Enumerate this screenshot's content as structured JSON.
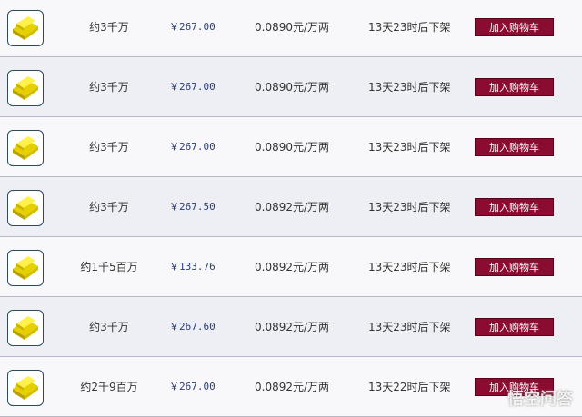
{
  "rows": [
    {
      "amount": "约3千万",
      "price": "￥267.00",
      "rate": "0.0890元/万两",
      "time": "13天23时后下架",
      "button": "加入购物车"
    },
    {
      "amount": "约3千万",
      "price": "￥267.00",
      "rate": "0.0890元/万两",
      "time": "13天23时后下架",
      "button": "加入购物车"
    },
    {
      "amount": "约3千万",
      "price": "￥267.00",
      "rate": "0.0890元/万两",
      "time": "13天23时后下架",
      "button": "加入购物车"
    },
    {
      "amount": "约3千万",
      "price": "￥267.50",
      "rate": "0.0892元/万两",
      "time": "13天23时后下架",
      "button": "加入购物车"
    },
    {
      "amount": "约1千5百万",
      "price": "￥133.76",
      "rate": "0.0892元/万两",
      "time": "13天23时后下架",
      "button": "加入购物车"
    },
    {
      "amount": "约3千万",
      "price": "￥267.60",
      "rate": "0.0892元/万两",
      "time": "13天23时后下架",
      "button": "加入购物车"
    },
    {
      "amount": "约2千9百万",
      "price": "￥267.00",
      "rate": "0.0892元/万两",
      "time": "13天22时后下架",
      "button": "加入购物车"
    }
  ],
  "watermark": "悟空问答",
  "colors": {
    "button": "#8a0c30",
    "price": "#2a3d7a"
  }
}
